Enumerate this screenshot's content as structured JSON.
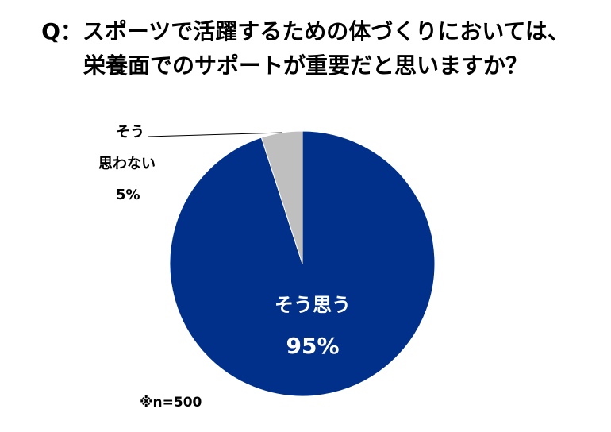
{
  "title": {
    "line1": "Q：スポーツで活躍するための体づくりにおいては、",
    "line2": "栄養面でのサポートが重要だと思いますか？"
  },
  "note": "※n=500",
  "chart_data": {
    "type": "pie",
    "title": "Q：スポーツで活躍するための体づくりにおいては、栄養面でのサポートが重要だと思いますか？",
    "slices": [
      {
        "label": "そう思う",
        "label_lines": [
          "そう思う"
        ],
        "percent_label": "95%",
        "value": 95,
        "color": "#00308a"
      },
      {
        "label": "そう思わない",
        "label_lines": [
          "そう",
          "思わない"
        ],
        "percent_label": "5%",
        "value": 5,
        "color": "#bfbfbf"
      }
    ],
    "start": "12 o'clock",
    "direction": "clockwise",
    "legend": "none"
  }
}
